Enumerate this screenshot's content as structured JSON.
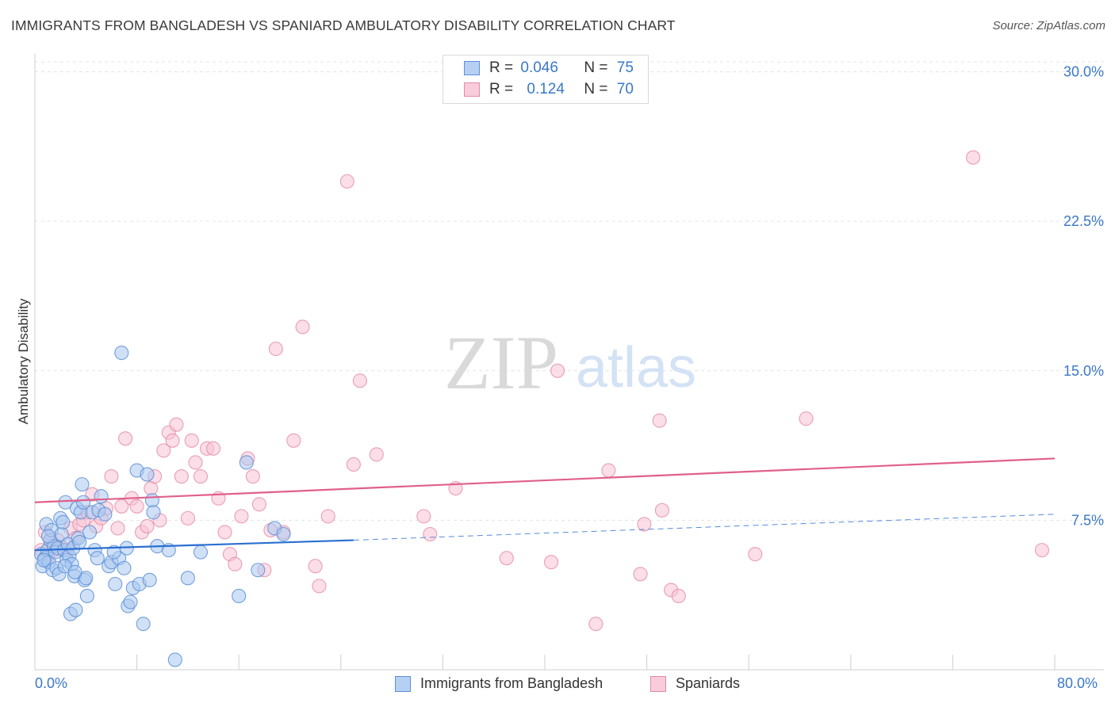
{
  "title": "IMMIGRANTS FROM BANGLADESH VS SPANIARD AMBULATORY DISABILITY CORRELATION CHART",
  "source": "Source: ZipAtlas.com",
  "watermark": {
    "zip": "ZIP",
    "atlas": "atlas"
  },
  "colors": {
    "blue_fill": "#a9c8f0",
    "blue_stroke": "#5d8fd6",
    "blue_line": "#2a6fd1",
    "pink_fill": "#f8c2d3",
    "pink_stroke": "#e48aa6",
    "pink_line": "#e0608a",
    "axis_text": "#3a78c9"
  },
  "legend_top": [
    {
      "r_label": "R =",
      "r_value": "0.046",
      "n_label": "N =",
      "n_value": "75"
    },
    {
      "r_label": "R =",
      "r_value": "0.124",
      "n_label": "N =",
      "n_value": "70"
    }
  ],
  "chart_data": {
    "type": "scatter",
    "title": "IMMIGRANTS FROM BANGLADESH VS SPANIARD AMBULATORY DISABILITY CORRELATION CHART",
    "xlabel": "",
    "ylabel": "Ambulatory Disability",
    "xlim": [
      0,
      80
    ],
    "ylim": [
      0,
      30.5
    ],
    "x_tick_labels": [
      "0.0%",
      "80.0%"
    ],
    "y_ticks": [
      7.5,
      15.0,
      22.5,
      30.0
    ],
    "y_tick_labels": [
      "7.5%",
      "15.0%",
      "22.5%",
      "30.0%"
    ],
    "grid": true,
    "legend_placement": "bottom-center",
    "series": [
      {
        "name": "Immigrants from Bangladesh",
        "trend": {
          "x0": 0,
          "y0": 6.0,
          "x1": 25,
          "y1": 6.5,
          "dash_to_x": 80,
          "dash_to_y": 7.8
        },
        "points": [
          [
            0.5,
            5.8
          ],
          [
            0.6,
            5.2
          ],
          [
            0.8,
            5.6
          ],
          [
            0.9,
            7.3
          ],
          [
            1.0,
            6.0
          ],
          [
            1.1,
            5.4
          ],
          [
            1.2,
            6.5
          ],
          [
            1.3,
            7.0
          ],
          [
            1.4,
            5.0
          ],
          [
            1.5,
            6.2
          ],
          [
            1.6,
            5.9
          ],
          [
            1.7,
            5.1
          ],
          [
            1.8,
            6.1
          ],
          [
            1.9,
            4.8
          ],
          [
            2.0,
            7.6
          ],
          [
            2.1,
            6.8
          ],
          [
            2.2,
            7.4
          ],
          [
            2.3,
            6.0
          ],
          [
            2.4,
            8.4
          ],
          [
            2.5,
            5.5
          ],
          [
            2.6,
            6.3
          ],
          [
            2.7,
            5.7
          ],
          [
            2.8,
            2.8
          ],
          [
            2.9,
            5.3
          ],
          [
            3.0,
            6.1
          ],
          [
            3.1,
            4.7
          ],
          [
            3.2,
            3.0
          ],
          [
            3.3,
            8.1
          ],
          [
            3.4,
            6.6
          ],
          [
            3.5,
            6.4
          ],
          [
            3.6,
            7.9
          ],
          [
            3.7,
            9.3
          ],
          [
            3.8,
            8.4
          ],
          [
            3.9,
            4.5
          ],
          [
            4.0,
            4.6
          ],
          [
            4.1,
            3.7
          ],
          [
            4.3,
            6.9
          ],
          [
            4.5,
            7.9
          ],
          [
            4.7,
            6.0
          ],
          [
            4.9,
            5.6
          ],
          [
            5.0,
            8.0
          ],
          [
            5.2,
            8.7
          ],
          [
            5.5,
            7.8
          ],
          [
            5.8,
            5.2
          ],
          [
            6.0,
            5.4
          ],
          [
            6.3,
            4.3
          ],
          [
            6.6,
            5.6
          ],
          [
            6.8,
            15.9
          ],
          [
            7.0,
            5.1
          ],
          [
            7.2,
            6.1
          ],
          [
            7.3,
            3.2
          ],
          [
            7.5,
            3.4
          ],
          [
            7.7,
            4.1
          ],
          [
            8.0,
            10.0
          ],
          [
            8.2,
            4.3
          ],
          [
            8.5,
            2.3
          ],
          [
            8.8,
            9.8
          ],
          [
            9.0,
            4.5
          ],
          [
            9.2,
            8.5
          ],
          [
            9.3,
            7.9
          ],
          [
            9.6,
            6.2
          ],
          [
            10.5,
            6.0
          ],
          [
            11.0,
            0.5
          ],
          [
            12.0,
            4.6
          ],
          [
            13.0,
            5.9
          ],
          [
            16.0,
            3.7
          ],
          [
            16.6,
            10.4
          ],
          [
            17.5,
            5.0
          ],
          [
            18.8,
            7.1
          ],
          [
            19.5,
            6.8
          ],
          [
            0.7,
            5.5
          ],
          [
            1.05,
            6.7
          ],
          [
            2.35,
            5.2
          ],
          [
            3.15,
            4.9
          ],
          [
            6.2,
            5.9
          ]
        ]
      },
      {
        "name": "Spaniards",
        "trend": {
          "x0": 0,
          "y0": 8.4,
          "x1": 80,
          "y1": 10.6
        },
        "points": [
          [
            0.5,
            6.0
          ],
          [
            0.8,
            6.9
          ],
          [
            1.0,
            5.7
          ],
          [
            1.2,
            6.2
          ],
          [
            1.5,
            6.0
          ],
          [
            1.8,
            6.5
          ],
          [
            2.2,
            6.1
          ],
          [
            2.5,
            6.0
          ],
          [
            2.8,
            7.1
          ],
          [
            3.2,
            6.6
          ],
          [
            3.5,
            7.3
          ],
          [
            3.8,
            7.5
          ],
          [
            4.1,
            7.9
          ],
          [
            4.5,
            8.8
          ],
          [
            4.8,
            7.2
          ],
          [
            5.2,
            7.6
          ],
          [
            5.6,
            8.1
          ],
          [
            6.0,
            9.7
          ],
          [
            6.5,
            7.1
          ],
          [
            6.8,
            8.2
          ],
          [
            7.1,
            11.6
          ],
          [
            7.6,
            8.6
          ],
          [
            8.0,
            8.2
          ],
          [
            8.4,
            6.9
          ],
          [
            8.8,
            7.2
          ],
          [
            9.1,
            9.1
          ],
          [
            9.4,
            9.7
          ],
          [
            9.8,
            7.5
          ],
          [
            10.1,
            11.0
          ],
          [
            10.5,
            11.9
          ],
          [
            10.8,
            11.5
          ],
          [
            11.1,
            12.3
          ],
          [
            11.5,
            9.7
          ],
          [
            12.0,
            7.6
          ],
          [
            12.3,
            11.5
          ],
          [
            12.6,
            10.4
          ],
          [
            13.0,
            9.7
          ],
          [
            13.5,
            11.1
          ],
          [
            14.0,
            11.1
          ],
          [
            14.4,
            8.6
          ],
          [
            14.9,
            6.9
          ],
          [
            15.3,
            5.8
          ],
          [
            15.7,
            5.3
          ],
          [
            16.2,
            7.7
          ],
          [
            16.7,
            10.6
          ],
          [
            17.1,
            9.7
          ],
          [
            17.6,
            8.3
          ],
          [
            18.0,
            5.0
          ],
          [
            18.5,
            7.0
          ],
          [
            18.9,
            16.1
          ],
          [
            19.5,
            6.9
          ],
          [
            20.3,
            11.5
          ],
          [
            21.0,
            17.2
          ],
          [
            22.0,
            5.2
          ],
          [
            22.3,
            4.2
          ],
          [
            23.0,
            7.7
          ],
          [
            24.5,
            24.5
          ],
          [
            25.0,
            10.3
          ],
          [
            25.5,
            14.5
          ],
          [
            26.8,
            10.8
          ],
          [
            30.5,
            7.7
          ],
          [
            31.0,
            6.8
          ],
          [
            33.0,
            9.1
          ],
          [
            37.0,
            5.6
          ],
          [
            40.5,
            5.4
          ],
          [
            41.0,
            15.0
          ],
          [
            44.0,
            2.3
          ],
          [
            45.0,
            10.0
          ],
          [
            47.5,
            4.8
          ],
          [
            49.0,
            12.5
          ]
        ]
      }
    ],
    "extra_pink_points": [
      [
        47.8,
        7.3
      ],
      [
        49.2,
        8.0
      ],
      [
        49.9,
        4.0
      ],
      [
        50.5,
        3.7
      ],
      [
        56.5,
        5.8
      ],
      [
        60.5,
        12.6
      ],
      [
        73.6,
        25.7
      ],
      [
        79.0,
        6.0
      ]
    ]
  },
  "legend_bottom": [
    {
      "label": "Immigrants from Bangladesh"
    },
    {
      "label": "Spaniards"
    }
  ]
}
